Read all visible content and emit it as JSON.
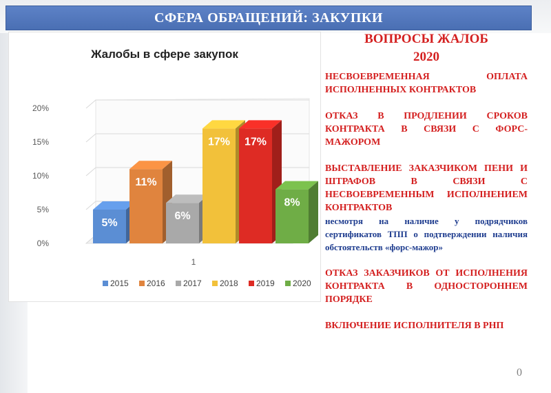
{
  "header": {
    "title": "СФЕРА ОБРАЩЕНИЙ: ЗАКУПКИ"
  },
  "chart_data": {
    "type": "bar",
    "title": "Жалобы в сфере закупок",
    "categories": [
      "1"
    ],
    "series": [
      {
        "name": "2015",
        "values": [
          5
        ],
        "label": "5%",
        "color": "#5b8ed4"
      },
      {
        "name": "2016",
        "values": [
          11
        ],
        "label": "11%",
        "color": "#e0843e"
      },
      {
        "name": "2017",
        "values": [
          6
        ],
        "label": "6%",
        "color": "#a9a9a9"
      },
      {
        "name": "2018",
        "values": [
          17
        ],
        "label": "17%",
        "color": "#f2c13a"
      },
      {
        "name": "2019",
        "values": [
          17
        ],
        "label": "17%",
        "color": "#de2b24"
      },
      {
        "name": "2020",
        "values": [
          8
        ],
        "label": "8%",
        "color": "#6fad46"
      }
    ],
    "yticks": [
      "0%",
      "5%",
      "10%",
      "15%",
      "20%"
    ],
    "ylim": [
      0,
      20
    ],
    "xlabel": "",
    "ylabel": "",
    "legend_position": "bottom",
    "grid": true
  },
  "questions": {
    "title_line1": "ВОПРОСЫ ЖАЛОБ",
    "title_line2": "2020",
    "item1": "НЕСВОЕВРЕМЕННАЯ ОПЛАТА ИСПОЛНЕННЫХ КОНТРАКТОВ",
    "item2": "ОТКАЗ В ПРОДЛЕНИИ СРОКОВ КОНТРАКТА В СВЯЗИ С ФОРС-МАЖОРОМ",
    "item3": "ВЫСТАВЛЕНИЕ ЗАКАЗЧИКОМ ПЕНИ И ШТРАФОВ В СВЯЗИ С НЕСВОЕВРЕМЕННЫМ ИСПОЛНЕНИЕМ КОНТРАКТОВ",
    "item3_note": "несмотря на наличие у подрядчиков сертификатов ТПП о подтверждении наличия обстоятельств «форс-мажор»",
    "item4": "ОТКАЗ ЗАКАЗЧИКОВ ОТ ИСПОЛНЕНИЯ КОНТРАКТА В ОДНОСТОРОННЕМ ПОРЯДКЕ",
    "item5": "ВКЛЮЧЕНИЕ ИСПОЛНИТЕЛЯ В РНП"
  },
  "page_number": "0"
}
